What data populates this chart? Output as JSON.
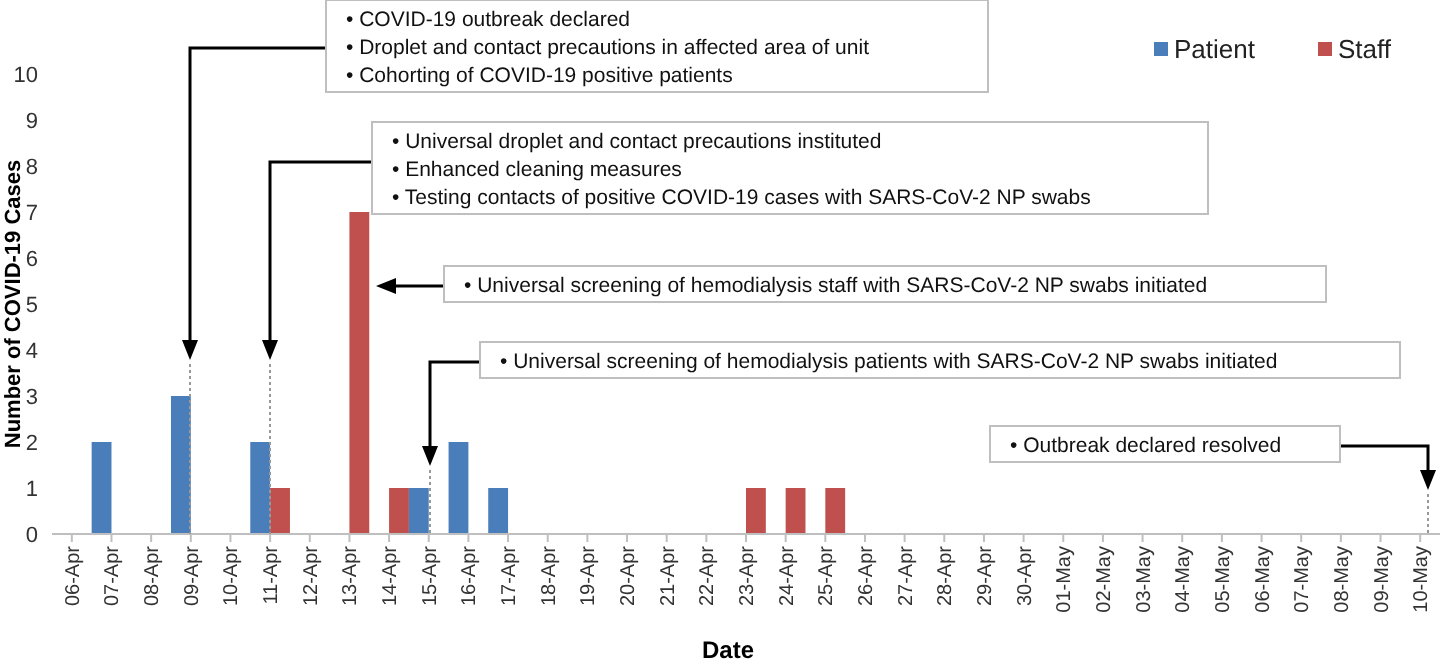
{
  "chart_data": {
    "type": "bar",
    "xlabel": "Date",
    "ylabel": "Number of COVID-19 Cases",
    "categories": [
      "06-Apr",
      "07-Apr",
      "08-Apr",
      "09-Apr",
      "10-Apr",
      "11-Apr",
      "12-Apr",
      "13-Apr",
      "14-Apr",
      "15-Apr",
      "16-Apr",
      "17-Apr",
      "18-Apr",
      "19-Apr",
      "20-Apr",
      "21-Apr",
      "22-Apr",
      "23-Apr",
      "24-Apr",
      "25-Apr",
      "26-Apr",
      "27-Apr",
      "28-Apr",
      "29-Apr",
      "30-Apr",
      "01-May",
      "02-May",
      "03-May",
      "04-May",
      "05-May",
      "06-May",
      "07-May",
      "08-May",
      "09-May",
      "10-May"
    ],
    "series": [
      {
        "name": "Patient",
        "color": "#4a7ebb",
        "values": [
          0,
          2,
          0,
          3,
          0,
          2,
          0,
          0,
          0,
          1,
          2,
          1,
          0,
          0,
          0,
          0,
          0,
          0,
          0,
          0,
          0,
          0,
          0,
          0,
          0,
          0,
          0,
          0,
          0,
          0,
          0,
          0,
          0,
          0,
          0
        ]
      },
      {
        "name": "Staff",
        "color": "#c0504d",
        "values": [
          0,
          0,
          0,
          0,
          0,
          1,
          0,
          7,
          1,
          0,
          0,
          0,
          0,
          0,
          0,
          0,
          0,
          1,
          1,
          1,
          0,
          0,
          0,
          0,
          0,
          0,
          0,
          0,
          0,
          0,
          0,
          0,
          0,
          0,
          0
        ]
      }
    ],
    "ylim": [
      0,
      10
    ],
    "yticks": [
      0,
      1,
      2,
      3,
      4,
      5,
      6,
      7,
      8,
      9,
      10
    ],
    "grid": false,
    "legend": "top right",
    "annotations": [
      "• COVID-19 outbreak declared\n• Droplet and contact precautions in affected area of unit\n• Cohorting of COVID-19 positive patients",
      "• Universal droplet and contact precautions instituted\n• Enhanced cleaning measures\n• Testing contacts of positive COVID-19 cases with SARS-CoV-2 NP swabs",
      "• Universal screening of hemodialysis staff with SARS-CoV-2 NP swabs initiated",
      "• Universal screening of hemodialysis patients with SARS-CoV-2 NP swabs initiated",
      "• Outbreak declared resolved"
    ]
  }
}
